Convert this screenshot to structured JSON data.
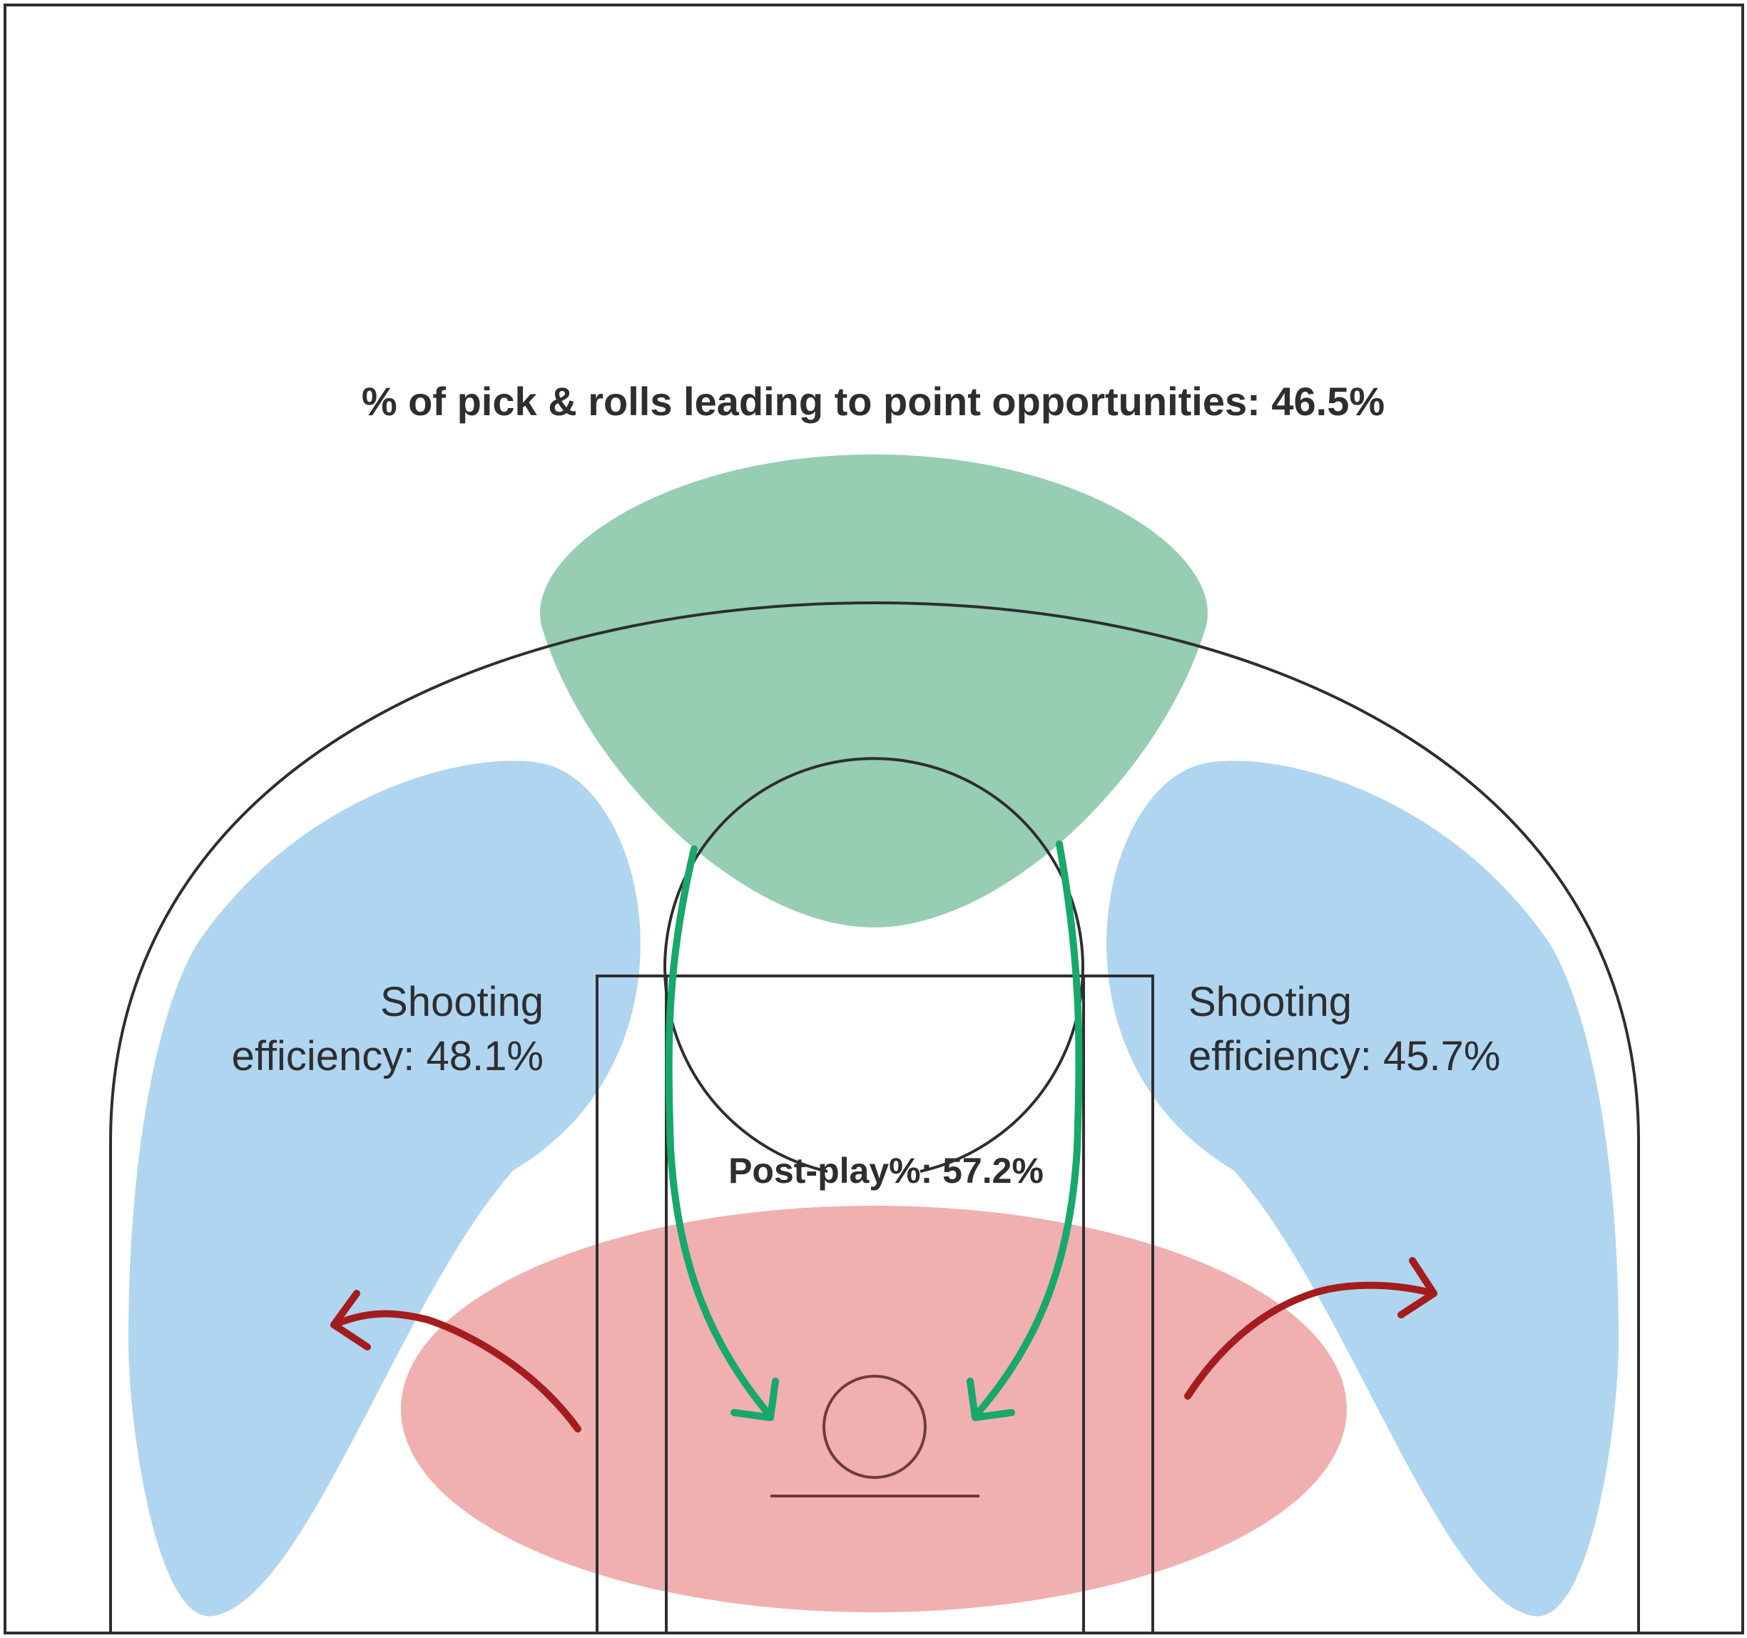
{
  "headline": "% of pick & rolls leading to point opportunities: 46.5%",
  "zones": {
    "left_wing": {
      "line1": "Shooting",
      "line2": "efficiency: 48.1%"
    },
    "right_wing": {
      "line1": "Shooting",
      "line2": "efficiency: 45.7%"
    },
    "post": {
      "label": "Post-play%: 57.2%"
    }
  },
  "colors": {
    "pick_and_roll_zone": "#96cdb3",
    "wing_zone": "#b0d5f0",
    "post_zone": "#f0b0b0",
    "green_arrow": "#17a86b",
    "red_arrow": "#a51c1c",
    "court_lines": "#2e2e30",
    "text": "#2e2e30"
  }
}
